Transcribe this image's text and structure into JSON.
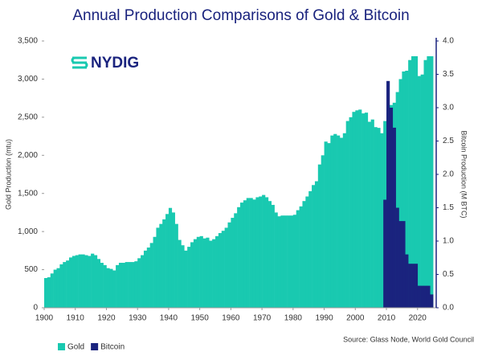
{
  "chart_data": {
    "type": "bar",
    "title": "Annual Production Comparisons of Gold & Bitcoin",
    "logo": "NYDIG",
    "source": "Source: Glass Node, World Gold Council",
    "y_label": "Gold Production (mtu)",
    "y2_label": "Bitcoin Production (M BTC)",
    "xlim": [
      1900,
      2026
    ],
    "xticks": [
      1900,
      1910,
      1920,
      1930,
      1940,
      1950,
      1960,
      1970,
      1980,
      1990,
      2000,
      2010,
      2020
    ],
    "ylim": [
      0,
      3500
    ],
    "yticks": [
      0,
      500,
      {
        "value": 1000,
        "label": "1,000"
      },
      {
        "value": 1500,
        "label": "1,500"
      },
      {
        "value": 2000,
        "label": "2,000"
      },
      {
        "value": 2500,
        "label": "2,500"
      },
      {
        "value": 3000,
        "label": "3,000"
      },
      {
        "value": 3500,
        "label": "3,500"
      }
    ],
    "y2lim": [
      0,
      4
    ],
    "y2ticks": [
      {
        "value": 0,
        "label": "0.0"
      },
      0.5,
      {
        "value": 1,
        "label": "1.0"
      },
      1.5,
      {
        "value": 2,
        "label": "2.0"
      },
      2.5,
      {
        "value": 3,
        "label": "3.0"
      },
      3.5,
      {
        "value": 4,
        "label": "4.0"
      }
    ],
    "series": [
      {
        "name": "Gold",
        "color": "#19c9b0",
        "x": [
          1900,
          1901,
          1902,
          1903,
          1904,
          1905,
          1906,
          1907,
          1908,
          1909,
          1910,
          1911,
          1912,
          1913,
          1914,
          1915,
          1916,
          1917,
          1918,
          1919,
          1920,
          1921,
          1922,
          1923,
          1924,
          1925,
          1926,
          1927,
          1928,
          1929,
          1930,
          1931,
          1932,
          1933,
          1934,
          1935,
          1936,
          1937,
          1938,
          1939,
          1940,
          1941,
          1942,
          1943,
          1944,
          1945,
          1946,
          1947,
          1948,
          1949,
          1950,
          1951,
          1952,
          1953,
          1954,
          1955,
          1956,
          1957,
          1958,
          1959,
          1960,
          1961,
          1962,
          1963,
          1964,
          1965,
          1966,
          1967,
          1968,
          1969,
          1970,
          1971,
          1972,
          1973,
          1974,
          1975,
          1976,
          1977,
          1978,
          1979,
          1980,
          1981,
          1982,
          1983,
          1984,
          1985,
          1986,
          1987,
          1988,
          1989,
          1990,
          1991,
          1992,
          1993,
          1994,
          1995,
          1996,
          1997,
          1998,
          1999,
          2000,
          2001,
          2002,
          2003,
          2004,
          2005,
          2006,
          2007,
          2008,
          2009,
          2010,
          2011,
          2012,
          2013,
          2014,
          2015,
          2016,
          2017,
          2018,
          2019,
          2020,
          2021,
          2022,
          2023,
          2024
        ],
        "values": [
          390,
          400,
          450,
          500,
          520,
          570,
          600,
          620,
          660,
          680,
          690,
          700,
          700,
          690,
          680,
          710,
          690,
          640,
          590,
          560,
          520,
          510,
          490,
          560,
          590,
          590,
          600,
          600,
          600,
          610,
          650,
          690,
          750,
          790,
          850,
          930,
          1050,
          1100,
          1160,
          1230,
          1310,
          1250,
          1100,
          890,
          820,
          750,
          800,
          860,
          900,
          930,
          940,
          910,
          920,
          880,
          900,
          940,
          980,
          1010,
          1050,
          1120,
          1180,
          1240,
          1320,
          1380,
          1410,
          1440,
          1440,
          1420,
          1450,
          1460,
          1480,
          1450,
          1400,
          1350,
          1250,
          1200,
          1210,
          1210,
          1210,
          1210,
          1220,
          1280,
          1330,
          1400,
          1460,
          1530,
          1610,
          1660,
          1880,
          2000,
          2180,
          2160,
          2260,
          2280,
          2260,
          2230,
          2290,
          2450,
          2500,
          2570,
          2590,
          2600,
          2550,
          2560,
          2440,
          2470,
          2370,
          2360,
          2290,
          2450,
          2560,
          2660,
          2690,
          2830,
          3000,
          3100,
          3110,
          3250,
          3300,
          3300,
          3040,
          3060,
          3250,
          3300,
          3300
        ]
      },
      {
        "name": "Bitcoin",
        "color": "#1a237e",
        "axis": "y2",
        "x": [
          2009,
          2010,
          2011,
          2012,
          2013,
          2014,
          2015,
          2016,
          2017,
          2018,
          2019,
          2020,
          2021,
          2022,
          2023,
          2024
        ],
        "values": [
          1.62,
          3.4,
          3.0,
          2.7,
          1.5,
          1.3,
          1.3,
          0.8,
          0.66,
          0.66,
          0.66,
          0.33,
          0.33,
          0.33,
          0.33,
          0.2
        ]
      }
    ]
  }
}
